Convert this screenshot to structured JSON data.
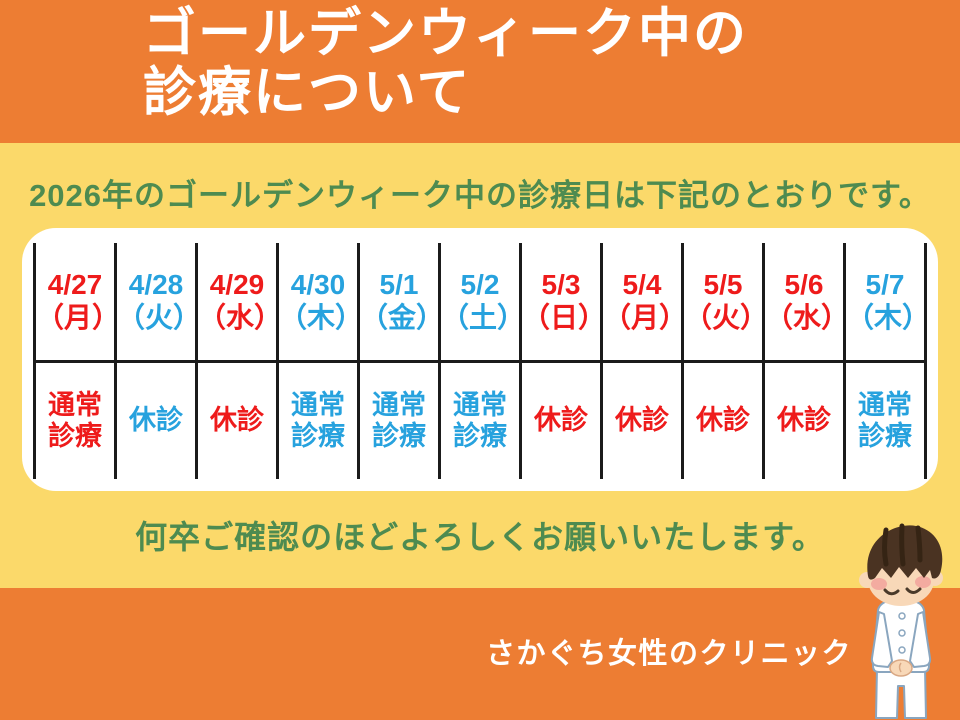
{
  "header": {
    "title_line1": "ゴールデンウィーク中の",
    "title_line2": "診療について"
  },
  "intro_text": "2026年のゴールデンウィーク中の診療日は下記のとおりです。",
  "schedule": {
    "columns": [
      {
        "date": "4/27",
        "day": "（月）",
        "color": "red",
        "status": "通常診療",
        "status_color": "red"
      },
      {
        "date": "4/28",
        "day": "（火）",
        "color": "blue",
        "status": "休診",
        "status_color": "blue"
      },
      {
        "date": "4/29",
        "day": "（水）",
        "color": "red",
        "status": "休診",
        "status_color": "red"
      },
      {
        "date": "4/30",
        "day": "（木）",
        "color": "blue",
        "status": "通常診療",
        "status_color": "blue"
      },
      {
        "date": "5/1",
        "day": "（金）",
        "color": "blue",
        "status": "通常診療",
        "status_color": "blue"
      },
      {
        "date": "5/2",
        "day": "（土）",
        "color": "blue",
        "status": "通常診療",
        "status_color": "blue"
      },
      {
        "date": "5/3",
        "day": "（日）",
        "color": "red",
        "status": "休診",
        "status_color": "red"
      },
      {
        "date": "5/4",
        "day": "（月）",
        "color": "red",
        "status": "休診",
        "status_color": "red"
      },
      {
        "date": "5/5",
        "day": "（火）",
        "color": "red",
        "status": "休診",
        "status_color": "red"
      },
      {
        "date": "5/6",
        "day": "（水）",
        "color": "red",
        "status": "休診",
        "status_color": "red"
      },
      {
        "date": "5/7",
        "day": "（木）",
        "color": "blue",
        "status": "通常診療",
        "status_color": "blue"
      }
    ]
  },
  "closing_text": "何卒ご確認のほどよろしくお願いいたします。",
  "footer": {
    "clinic_name": "さかぐち女性のクリニック"
  },
  "colors": {
    "accent_orange": "#ed7d33",
    "band_yellow": "#fbd96a",
    "text_green": "#4e8b50",
    "weekday_red": "#ee1b1b",
    "weekday_blue": "#27a2de",
    "table_border": "#1b1b1b"
  },
  "illustration": "bowing-nurse"
}
